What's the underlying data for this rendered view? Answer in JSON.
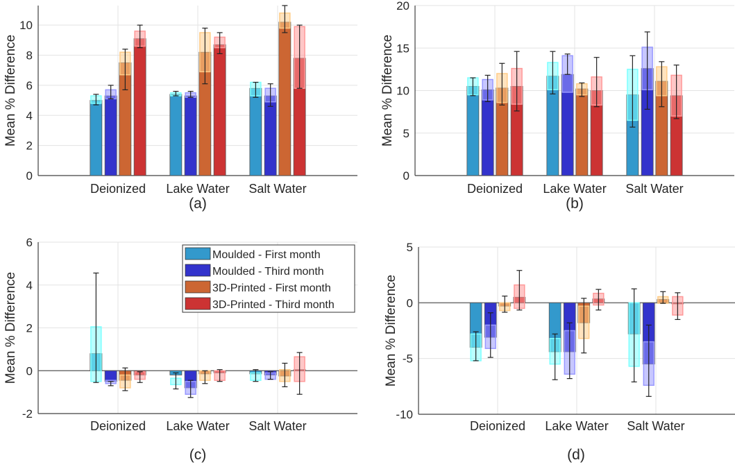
{
  "chart_data": {
    "type": "bar",
    "series_names": [
      "Moulded - First month",
      "Moulded - Third month",
      "3D-Printed - First month",
      "3D-Printed - Third month"
    ],
    "series_colors": [
      "#3399cc",
      "#3333cc",
      "#cc6633",
      "#cc3333"
    ],
    "box_colors": [
      "#7fffff",
      "#9999ff",
      "#ffcc88",
      "#ff9999"
    ],
    "categories": [
      "Deionized",
      "Lake Water",
      "Salt Water"
    ],
    "legend_placement": "top-right of panel (c)",
    "panels": [
      {
        "label": "(a)",
        "ylabel": "Mean % Difference",
        "ylim": [
          0,
          11.3
        ],
        "yticks": [
          0,
          2,
          4,
          6,
          8,
          10
        ],
        "grid": true,
        "series": [
          {
            "values": [
              5.0,
              5.4,
              5.8
            ],
            "box": [
              [
                4.8,
                5.3
              ],
              [
                5.3,
                5.5
              ],
              [
                5.3,
                6.2
              ]
            ],
            "err": [
              [
                4.7,
                5.4
              ],
              [
                5.3,
                5.6
              ],
              [
                5.2,
                6.2
              ]
            ]
          },
          {
            "values": [
              5.3,
              5.3,
              5.3
            ],
            "box": [
              [
                5.1,
                5.7
              ],
              [
                5.2,
                5.5
              ],
              [
                4.9,
                5.8
              ]
            ],
            "err": [
              [
                5.1,
                6.0
              ],
              [
                5.2,
                5.6
              ],
              [
                4.6,
                6.1
              ]
            ]
          },
          {
            "values": [
              7.5,
              8.2,
              10.2
            ],
            "box": [
              [
                6.7,
                8.2
              ],
              [
                6.9,
                9.5
              ],
              [
                9.8,
                10.8
              ]
            ],
            "err": [
              [
                5.7,
                8.4
              ],
              [
                6.1,
                9.8
              ],
              [
                9.5,
                11.3
              ]
            ]
          },
          {
            "values": [
              9.1,
              8.7,
              7.8
            ],
            "box": [
              [
                8.6,
                9.6
              ],
              [
                8.5,
                9.2
              ],
              [
                5.8,
                9.9
              ]
            ],
            "err": [
              [
                8.5,
                10.0
              ],
              [
                8.1,
                9.5
              ],
              [
                5.8,
                10.0
              ]
            ]
          }
        ]
      },
      {
        "label": "(b)",
        "ylabel": "Mean % Difference",
        "ylim": [
          0,
          20
        ],
        "yticks": [
          0,
          5,
          10,
          15,
          20
        ],
        "grid": true,
        "series": [
          {
            "values": [
              10.5,
              11.7,
              9.5
            ],
            "box": [
              [
                9.5,
                11.5
              ],
              [
                10.1,
                13.3
              ],
              [
                6.5,
                12.5
              ]
            ],
            "err": [
              [
                9.4,
                11.5
              ],
              [
                9.6,
                14.6
              ],
              [
                5.7,
                14.1
              ]
            ]
          },
          {
            "values": [
              10.1,
              11.9,
              12.6
            ],
            "box": [
              [
                8.9,
                11.3
              ],
              [
                9.8,
                14.1
              ],
              [
                10.1,
                15.1
              ]
            ],
            "err": [
              [
                8.7,
                11.8
              ],
              [
                11.9,
                14.3
              ],
              [
                7.8,
                16.9
              ]
            ]
          },
          {
            "values": [
              10.3,
              10.2,
              11.1
            ],
            "box": [
              [
                8.6,
                12.0
              ],
              [
                9.5,
                10.8
              ],
              [
                9.4,
                12.8
              ]
            ],
            "err": [
              [
                8.3,
                13.2
              ],
              [
                9.3,
                10.9
              ],
              [
                8.1,
                13.4
              ]
            ]
          },
          {
            "values": [
              10.5,
              10.0,
              9.4
            ],
            "box": [
              [
                8.4,
                12.6
              ],
              [
                8.3,
                11.6
              ],
              [
                7.0,
                11.8
              ]
            ],
            "err": [
              [
                7.6,
                14.6
              ],
              [
                8.1,
                13.9
              ],
              [
                6.7,
                13.0
              ]
            ]
          }
        ]
      },
      {
        "label": "(c)",
        "ylabel": "Mean % Difference",
        "ylim": [
          -2,
          6
        ],
        "yticks": [
          -2,
          0,
          2,
          4,
          6
        ],
        "grid": true,
        "series": [
          {
            "values": [
              0.8,
              -0.2,
              -0.15
            ],
            "box": [
              [
                -0.5,
                2.05
              ],
              [
                -0.65,
                -0.35
              ],
              [
                -0.45,
                -0.1
              ]
            ],
            "err": [
              [
                -0.55,
                4.56
              ],
              [
                -0.85,
                -0.1
              ],
              [
                -0.5,
                0.05
              ]
            ]
          },
          {
            "values": [
              -0.5,
              -0.8,
              -0.2
            ],
            "box": [
              [
                -0.6,
                -0.45
              ],
              [
                -1.1,
                -0.5
              ],
              [
                -0.4,
                -0.1
              ]
            ],
            "err": [
              [
                -0.7,
                -0.5
              ],
              [
                -1.25,
                -0.45
              ],
              [
                -0.4,
                -0.05
              ]
            ]
          },
          {
            "values": [
              -0.45,
              -0.15,
              -0.25
            ],
            "box": [
              [
                -0.8,
                -0.2
              ],
              [
                -0.45,
                0
              ],
              [
                -0.5,
                0.05
              ]
            ],
            "err": [
              [
                -0.93,
                0.13
              ],
              [
                -0.6,
                0
              ],
              [
                -0.75,
                0.35
              ]
            ]
          },
          {
            "values": [
              -0.2,
              -0.1,
              0.05
            ],
            "box": [
              [
                -0.4,
                -0.05
              ],
              [
                -0.45,
                0
              ],
              [
                -0.5,
                0.65
              ]
            ],
            "err": [
              [
                -0.55,
                -0.05
              ],
              [
                -0.5,
                0.05
              ],
              [
                -1.1,
                0.85
              ]
            ]
          }
        ]
      },
      {
        "label": "(d)",
        "ylabel": "Mean % Difference",
        "ylim": [
          -10,
          5
        ],
        "yticks": [
          -10,
          -5,
          0,
          5
        ],
        "grid": true,
        "series": [
          {
            "values": [
              -4.0,
              -4.4,
              -2.8
            ],
            "box": [
              [
                -5.2,
                -2.8
              ],
              [
                -5.5,
                -3.2
              ],
              [
                -5.7,
                0
              ]
            ],
            "err": [
              [
                -5.2,
                -2.6
              ],
              [
                -6.9,
                -2.8
              ],
              [
                -7.1,
                1.25
              ]
            ]
          },
          {
            "values": [
              -3.1,
              -4.4,
              -5.5
            ],
            "box": [
              [
                -4.1,
                -2.0
              ],
              [
                -6.4,
                -2.5
              ],
              [
                -7.4,
                -3.5
              ]
            ],
            "err": [
              [
                -4.9,
                -0.9
              ],
              [
                -6.8,
                -1.8
              ],
              [
                -8.4,
                -2.0
              ]
            ]
          },
          {
            "values": [
              -0.3,
              -1.8,
              0.3
            ],
            "box": [
              [
                -0.7,
                0
              ],
              [
                -3.2,
                -0.3
              ],
              [
                -0.05,
                0.55
              ]
            ],
            "err": [
              [
                -0.85,
                0.6
              ],
              [
                -4.5,
                0.4
              ],
              [
                -0.05,
                1.0
              ]
            ]
          },
          {
            "values": [
              0.5,
              0.35,
              -0.1
            ],
            "box": [
              [
                -0.5,
                1.6
              ],
              [
                -0.2,
                0.85
              ],
              [
                -1.1,
                0.55
              ]
            ],
            "err": [
              [
                -0.65,
                2.9
              ],
              [
                -0.65,
                1.2
              ],
              [
                -1.5,
                0.9
              ]
            ]
          }
        ]
      }
    ]
  }
}
